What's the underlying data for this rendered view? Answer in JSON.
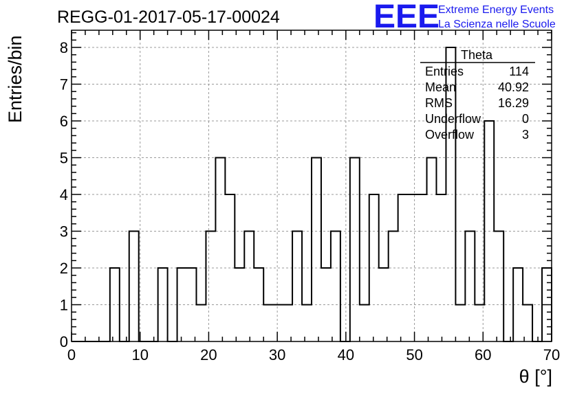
{
  "chart_data": {
    "type": "bar",
    "title": "REGG-01-2017-05-17-00024",
    "xlabel": "θ [°]",
    "ylabel": "Entries/bin",
    "xlim": [
      0,
      70
    ],
    "ylim": [
      0,
      8.5
    ],
    "grid": true,
    "x_ticks": [
      "0",
      "10",
      "20",
      "30",
      "40",
      "50",
      "60",
      "70"
    ],
    "y_ticks": [
      "0",
      "1",
      "2",
      "3",
      "4",
      "5",
      "6",
      "7",
      "8"
    ],
    "bin_edges": [
      0,
      1.4,
      2.8,
      4.2,
      5.6,
      7.0,
      8.4,
      9.8,
      11.2,
      12.6,
      14.0,
      15.4,
      16.8,
      18.2,
      19.6,
      21.0,
      22.4,
      23.8,
      25.2,
      26.6,
      28.0,
      29.4,
      30.8,
      32.2,
      33.6,
      35.0,
      36.4,
      37.8,
      39.2,
      40.6,
      42.0,
      43.4,
      44.8,
      46.2,
      47.6,
      49.0,
      50.4,
      51.8,
      53.2,
      54.6,
      56.0,
      57.4,
      58.8,
      60.2,
      61.6,
      63.0,
      64.4,
      65.8,
      67.2,
      68.6,
      70.0
    ],
    "values": [
      0,
      0,
      0,
      0,
      2,
      0,
      3,
      0,
      0,
      2,
      0,
      2,
      2,
      1,
      3,
      5,
      4,
      2,
      3,
      2,
      1,
      1,
      1,
      3,
      1,
      5,
      2,
      3,
      0,
      5,
      1,
      4,
      2,
      3,
      4,
      4,
      4,
      5,
      4,
      8,
      1,
      3,
      1,
      6,
      3,
      0,
      2,
      1,
      0,
      2
    ],
    "stats": {
      "name": "Theta",
      "rows": [
        {
          "label": "Entries",
          "value": "114"
        },
        {
          "label": "Mean",
          "value": "40.92"
        },
        {
          "label": "RMS",
          "value": "16.29"
        },
        {
          "label": "Underflow",
          "value": "0"
        },
        {
          "label": "Overflow",
          "value": "3"
        }
      ]
    },
    "logo": {
      "mark": "EEE",
      "line1": "Extreme Energy Events",
      "line2": "La Scienza nelle Scuole"
    },
    "colors": {
      "histogram": "#000000",
      "grid": "#999999",
      "logo": "#1a1aee"
    }
  }
}
